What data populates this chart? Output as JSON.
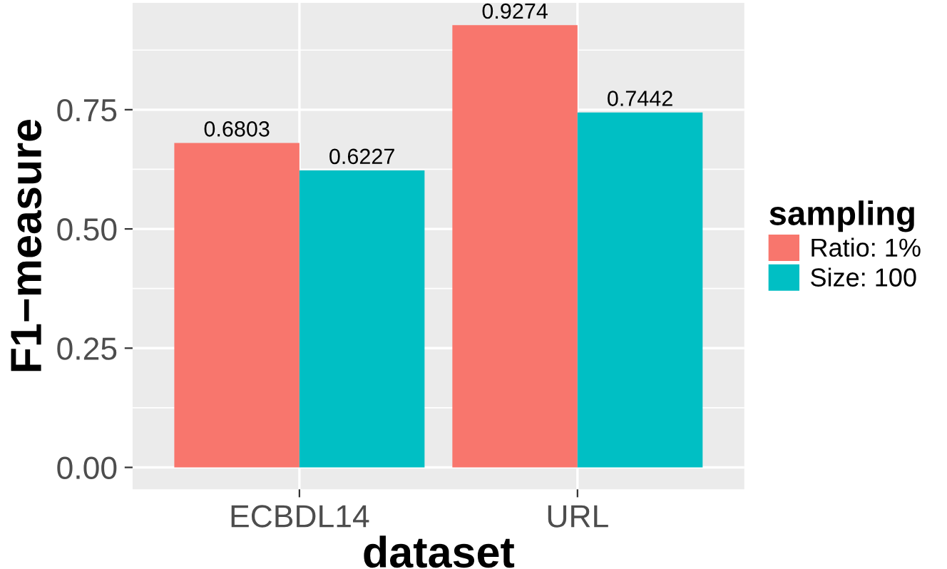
{
  "chart_data": {
    "type": "bar",
    "xlabel": "dataset",
    "ylabel": "F1−measure",
    "legend_title": "sampling",
    "categories": [
      "ECBDL14",
      "URL"
    ],
    "series": [
      {
        "name": "Ratio: 1%",
        "color": "#f8766d",
        "values": [
          0.6803,
          0.9274
        ]
      },
      {
        "name": "Size: 100",
        "color": "#00bfc4",
        "values": [
          0.6227,
          0.7442
        ]
      }
    ],
    "ylim": [
      -0.046,
      0.974
    ],
    "yticks": [
      {
        "value": 0,
        "label": "0.00"
      },
      {
        "value": 0.25,
        "label": "0.25"
      },
      {
        "value": 0.5,
        "label": "0.50"
      },
      {
        "value": 0.75,
        "label": "0.75"
      }
    ],
    "data_labels": true,
    "grid": true,
    "legend": "right"
  }
}
